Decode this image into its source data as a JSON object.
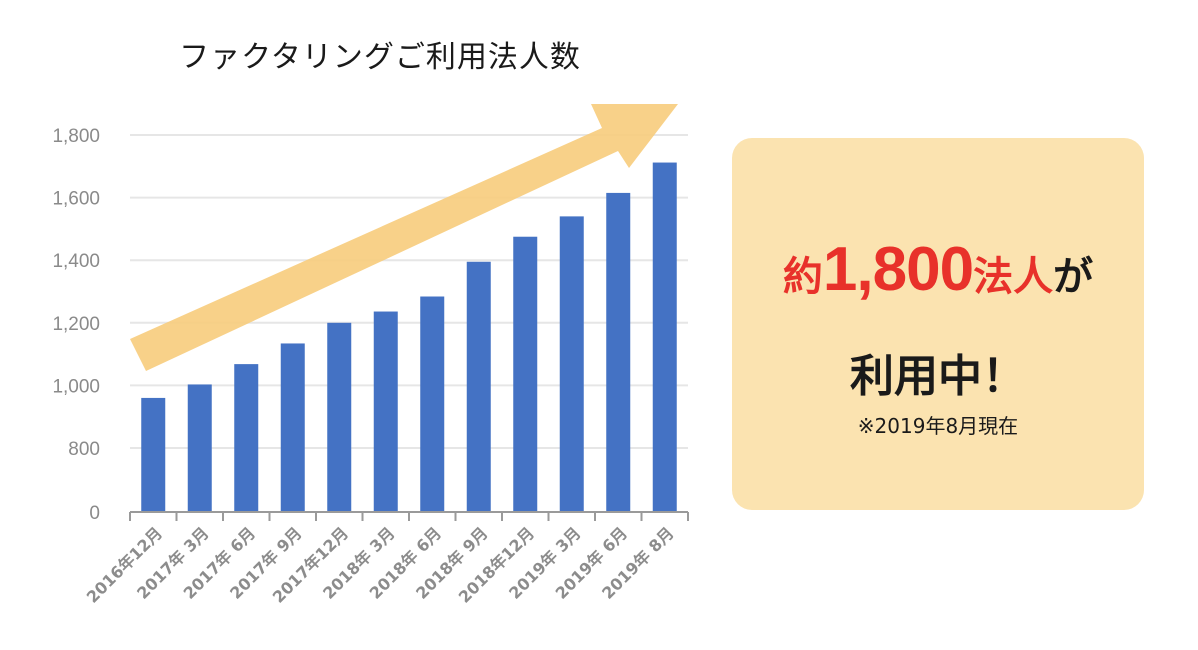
{
  "chart_data": {
    "type": "bar",
    "title": "ファクタリングご利用法人数",
    "categories": [
      "2016年12月",
      "2017年 3月",
      "2017年 6月",
      "2017年 9月",
      "2017年12月",
      "2018年 3月",
      "2018年 6月",
      "2018年 9月",
      "2018年12月",
      "2019年 3月",
      "2019年 6月",
      "2019年 8月"
    ],
    "values": [
      960,
      1003,
      1068,
      1134,
      1200,
      1236,
      1284,
      1395,
      1475,
      1540,
      1615,
      1712
    ],
    "y_ticks": [
      "0",
      "800",
      "1,000",
      "1,200",
      "1,400",
      "1,600",
      "1,800"
    ],
    "ylim": [
      0,
      1800
    ],
    "grid": true,
    "bar_color": "#4472c4",
    "arrow_color": "#f7cd7f"
  },
  "callout": {
    "prefix": "約",
    "number": "1,800",
    "unit": "法人",
    "particle": "が",
    "line2": "利用中！",
    "note": "※2019年8月現在",
    "background": "#fbe3b0",
    "accent": "#e8312a"
  }
}
